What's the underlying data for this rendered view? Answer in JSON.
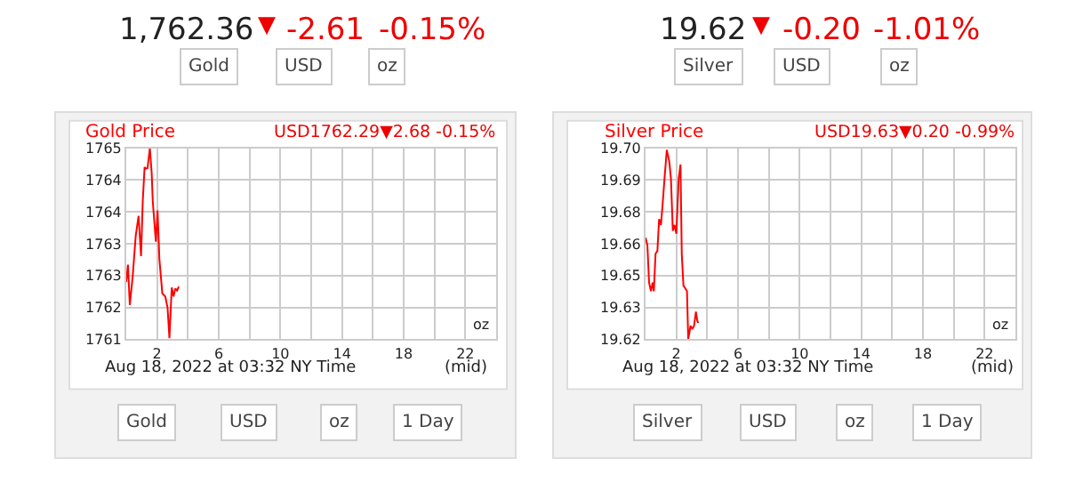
{
  "chart_data": [
    {
      "type": "line",
      "title": "Gold Price",
      "subtitle": "USD1762.29▼2.68 -0.15%",
      "x": [
        0,
        0.11,
        0.23,
        0.42,
        0.61,
        0.8,
        0.96,
        1.07,
        1.19,
        1.26,
        1.38,
        1.53,
        1.65,
        1.72,
        1.92,
        2.03,
        2.15,
        2.34,
        2.53,
        2.68,
        2.8,
        2.95,
        3.07,
        3.18,
        3.3,
        3.41
      ],
      "series": [
        {
          "color": "#ff0000",
          "values": [
            1762.4,
            1762.75,
            1761.94,
            1762.52,
            1763.32,
            1763.73,
            1762.92,
            1764.02,
            1764.71,
            1764.68,
            1764.69,
            1765.09,
            1764.59,
            1764.02,
            1763.21,
            1763.84,
            1762.86,
            1762.17,
            1762.11,
            1761.88,
            1761.27,
            1762.29,
            1762.11,
            1762.27,
            1762.23,
            1762.31
          ]
        }
      ],
      "xlim": [
        0,
        24
      ],
      "xticks": [
        {
          "value": 0,
          "label": null
        },
        2,
        {
          "value": 4,
          "label": null
        },
        6,
        {
          "value": 8,
          "label": null
        },
        10,
        {
          "value": 12,
          "label": null
        },
        14,
        {
          "value": 16,
          "label": null
        },
        18,
        {
          "value": 20,
          "label": null
        },
        22,
        {
          "value": 24,
          "label": null
        }
      ],
      "ylim": [
        1761.25,
        1765.09
      ],
      "yticks": [
        {
          "value": 1761.25,
          "label": "1761"
        },
        {
          "value": 1761.89,
          "label": "1762"
        },
        {
          "value": 1762.53,
          "label": "1763"
        },
        {
          "value": 1763.17,
          "label": "1763"
        },
        {
          "value": 1763.81,
          "label": "1764"
        },
        {
          "value": 1764.45,
          "label": "1764"
        },
        {
          "value": 1765.09,
          "label": "1765"
        }
      ],
      "grid": true,
      "marker": "none",
      "line_style": "solid",
      "annotations": [
        "1,762.36",
        "▼",
        "-2.61",
        "-0.15%",
        "Gold",
        "USD",
        "oz",
        "oz",
        "Aug 18, 2022 at 03:32 NY Time",
        "(mid)",
        "Gold",
        "USD",
        "oz",
        "1 Day"
      ]
    },
    {
      "type": "line",
      "title": "Silver Price",
      "subtitle": "USD19.63▼0.20 -0.99%",
      "x": [
        0,
        0.12,
        0.23,
        0.35,
        0.46,
        0.54,
        0.65,
        0.77,
        0.88,
        1.0,
        1.12,
        1.23,
        1.38,
        1.54,
        1.65,
        1.77,
        1.88,
        2.0,
        2.15,
        2.27,
        2.35,
        2.46,
        2.58,
        2.69,
        2.77,
        2.92,
        3.04,
        3.15,
        3.27,
        3.35,
        3.42
      ],
      "series": [
        {
          "color": "#ff0000",
          "values": [
            19.6642,
            19.661,
            19.6449,
            19.6412,
            19.6449,
            19.6412,
            19.6573,
            19.6585,
            19.6722,
            19.6697,
            19.6796,
            19.6895,
            19.702,
            19.697,
            19.6895,
            19.6672,
            19.6697,
            19.6659,
            19.6895,
            19.6957,
            19.6573,
            19.6436,
            19.6424,
            19.6412,
            19.6205,
            19.6263,
            19.6249,
            19.6263,
            19.6324,
            19.6287,
            19.6275
          ]
        }
      ],
      "xlim": [
        0,
        24
      ],
      "xticks": [
        {
          "value": 0,
          "label": null
        },
        2,
        {
          "value": 4,
          "label": null
        },
        6,
        {
          "value": 8,
          "label": null
        },
        10,
        {
          "value": 12,
          "label": null
        },
        14,
        {
          "value": 16,
          "label": null
        },
        18,
        {
          "value": 20,
          "label": null
        },
        22,
        {
          "value": 24,
          "label": null
        }
      ],
      "ylim": [
        19.6205,
        19.7027
      ],
      "yticks": [
        {
          "value": 19.6205,
          "label": "19.62"
        },
        {
          "value": 19.6342,
          "label": "19.63"
        },
        {
          "value": 19.6479,
          "label": "19.65"
        },
        {
          "value": 19.6616,
          "label": "19.66"
        },
        {
          "value": 19.6753,
          "label": "19.68"
        },
        {
          "value": 19.689,
          "label": "19.69"
        },
        {
          "value": 19.7027,
          "label": "19.70"
        }
      ],
      "grid": true,
      "marker": "none",
      "line_style": "solid",
      "annotations": [
        "19.62",
        "▼",
        "-0.20",
        "-1.01%",
        "Silver",
        "USD",
        "oz",
        "oz",
        "Aug 18, 2022 at 03:32 NY Time",
        "(mid)",
        "Silver",
        "USD",
        "oz",
        "1 Day"
      ]
    }
  ]
}
